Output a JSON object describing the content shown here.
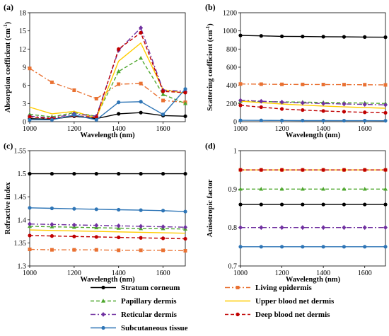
{
  "chart_data": [
    {
      "panel_label": "(a)",
      "type": "line",
      "xlabel": "Wavelength (nm)",
      "ylabel": "Absorption coefficient (cm",
      "ylabel_unit": "-1",
      "ylabel_close": ")",
      "xlim": [
        1000,
        1700
      ],
      "ylim": [
        0,
        18
      ],
      "xticks": [
        1000,
        1200,
        1400,
        1600
      ],
      "yticks": [
        0,
        3,
        6,
        9,
        12,
        15,
        18
      ],
      "ytick_decimals": 0,
      "series": [
        {
          "name": "Stratum corneum",
          "x": [
            1000,
            1100,
            1200,
            1300,
            1400,
            1500,
            1600,
            1700
          ],
          "y": [
            0.5,
            0.4,
            0.9,
            0.5,
            1.3,
            1.5,
            1.0,
            0.9
          ]
        },
        {
          "name": "Living epidermis",
          "x": [
            1000,
            1100,
            1200,
            1300,
            1400,
            1500,
            1600,
            1700
          ],
          "y": [
            8.8,
            6.5,
            5.2,
            3.8,
            6.2,
            6.3,
            3.5,
            3.2
          ]
        },
        {
          "name": "Papillary dermis",
          "x": [
            1000,
            1100,
            1200,
            1300,
            1400,
            1500,
            1600,
            1700
          ],
          "y": [
            1.2,
            0.8,
            1.5,
            0.9,
            8.3,
            10.5,
            4.5,
            3.0
          ]
        },
        {
          "name": "Upper blood net dermis",
          "x": [
            1000,
            1100,
            1200,
            1300,
            1400,
            1500,
            1600,
            1700
          ],
          "y": [
            2.4,
            1.3,
            1.7,
            0.6,
            10.0,
            13.0,
            5.3,
            4.7
          ]
        },
        {
          "name": "Reticular dermis",
          "x": [
            1000,
            1100,
            1200,
            1300,
            1400,
            1500,
            1600,
            1700
          ],
          "y": [
            0.9,
            0.6,
            1.3,
            0.9,
            11.8,
            15.5,
            5.2,
            5.0
          ]
        },
        {
          "name": "Deep blood net dermis",
          "x": [
            1000,
            1100,
            1200,
            1300,
            1400,
            1500,
            1600,
            1700
          ],
          "y": [
            0.8,
            0.5,
            1.0,
            0.7,
            12.0,
            14.7,
            5.0,
            4.8
          ]
        },
        {
          "name": "Subcutaneous tissue",
          "x": [
            1000,
            1100,
            1200,
            1300,
            1400,
            1500,
            1600,
            1700
          ],
          "y": [
            0.3,
            0.3,
            1.1,
            0.3,
            3.2,
            3.3,
            1.2,
            5.4
          ]
        }
      ]
    },
    {
      "panel_label": "(b)",
      "type": "line",
      "xlabel": "Wavelength (nm)",
      "ylabel": "Scattering coefficient (cm",
      "ylabel_unit": "-1",
      "ylabel_close": ")",
      "xlim": [
        1000,
        1700
      ],
      "ylim": [
        0,
        1200
      ],
      "xticks": [
        1000,
        1200,
        1400,
        1600
      ],
      "yticks": [
        0,
        200,
        400,
        600,
        800,
        1000,
        1200
      ],
      "ytick_decimals": 0,
      "series": [
        {
          "name": "Stratum corneum",
          "x": [
            1000,
            1100,
            1200,
            1300,
            1400,
            1500,
            1600,
            1700
          ],
          "y": [
            950,
            945,
            940,
            938,
            936,
            934,
            932,
            930
          ]
        },
        {
          "name": "Living epidermis",
          "x": [
            1000,
            1100,
            1200,
            1300,
            1400,
            1500,
            1600,
            1700
          ],
          "y": [
            415,
            413,
            411,
            410,
            409,
            408,
            407,
            405
          ]
        },
        {
          "name": "Papillary dermis",
          "x": [
            1000,
            1100,
            1200,
            1300,
            1400,
            1500,
            1600,
            1700
          ],
          "y": [
            225,
            222,
            218,
            215,
            212,
            208,
            205,
            200
          ]
        },
        {
          "name": "Upper blood net dermis",
          "x": [
            1000,
            1100,
            1200,
            1300,
            1400,
            1500,
            1600,
            1700
          ],
          "y": [
            225,
            210,
            195,
            182,
            172,
            163,
            155,
            148
          ]
        },
        {
          "name": "Reticular dermis",
          "x": [
            1000,
            1100,
            1200,
            1300,
            1400,
            1500,
            1600,
            1700
          ],
          "y": [
            235,
            225,
            215,
            207,
            200,
            195,
            190,
            185
          ]
        },
        {
          "name": "Deep blood net dermis",
          "x": [
            1000,
            1100,
            1200,
            1300,
            1400,
            1500,
            1600,
            1700
          ],
          "y": [
            180,
            160,
            140,
            128,
            118,
            110,
            103,
            98
          ]
        },
        {
          "name": "Subcutaneous tissue",
          "x": [
            1000,
            1100,
            1200,
            1300,
            1400,
            1500,
            1600,
            1700
          ],
          "y": [
            15,
            14,
            13,
            12,
            12,
            11,
            11,
            10
          ]
        }
      ]
    },
    {
      "panel_label": "(c)",
      "type": "line",
      "xlabel": "Wavelength (nm)",
      "ylabel": "Refractive index",
      "xlim": [
        1000,
        1700
      ],
      "ylim": [
        1.3,
        1.55
      ],
      "xticks": [
        1000,
        1200,
        1400,
        1600
      ],
      "yticks": [
        1.3,
        1.35,
        1.4,
        1.45,
        1.5,
        1.55
      ],
      "ytick_labels": [
        "1.3",
        "1.35",
        "1.4",
        "1.45",
        "1.5",
        "1.55"
      ],
      "series": [
        {
          "name": "Stratum corneum",
          "x": [
            1000,
            1100,
            1200,
            1300,
            1400,
            1500,
            1600,
            1700
          ],
          "y": [
            1.5,
            1.5,
            1.5,
            1.5,
            1.5,
            1.5,
            1.5,
            1.5
          ]
        },
        {
          "name": "Living epidermis",
          "x": [
            1000,
            1100,
            1200,
            1300,
            1400,
            1500,
            1600,
            1700
          ],
          "y": [
            1.336,
            1.335,
            1.335,
            1.335,
            1.334,
            1.334,
            1.334,
            1.333
          ]
        },
        {
          "name": "Papillary dermis",
          "x": [
            1000,
            1100,
            1200,
            1300,
            1400,
            1500,
            1600,
            1700
          ],
          "y": [
            1.386,
            1.385,
            1.384,
            1.383,
            1.382,
            1.381,
            1.381,
            1.38
          ]
        },
        {
          "name": "Upper blood net dermis",
          "x": [
            1000,
            1100,
            1200,
            1300,
            1400,
            1500,
            1600,
            1700
          ],
          "y": [
            1.378,
            1.377,
            1.376,
            1.375,
            1.374,
            1.373,
            1.372,
            1.371
          ]
        },
        {
          "name": "Reticular dermis",
          "x": [
            1000,
            1100,
            1200,
            1300,
            1400,
            1500,
            1600,
            1700
          ],
          "y": [
            1.391,
            1.39,
            1.389,
            1.388,
            1.387,
            1.386,
            1.385,
            1.384
          ]
        },
        {
          "name": "Deep blood net dermis",
          "x": [
            1000,
            1100,
            1200,
            1300,
            1400,
            1500,
            1600,
            1700
          ],
          "y": [
            1.366,
            1.365,
            1.364,
            1.363,
            1.362,
            1.361,
            1.36,
            1.359
          ]
        },
        {
          "name": "Subcutaneous tissue",
          "x": [
            1000,
            1100,
            1200,
            1300,
            1400,
            1500,
            1600,
            1700
          ],
          "y": [
            1.426,
            1.425,
            1.424,
            1.423,
            1.422,
            1.421,
            1.42,
            1.418
          ]
        }
      ]
    },
    {
      "panel_label": "(d)",
      "type": "line",
      "xlabel": "Wavelength (nm)",
      "ylabel": "Anisotropic factor",
      "xlim": [
        1000,
        1700
      ],
      "ylim": [
        0.7,
        1.0
      ],
      "xticks": [
        1000,
        1200,
        1400,
        1600
      ],
      "yticks": [
        0.7,
        0.8,
        0.9,
        1.0
      ],
      "ytick_labels": [
        "0.7",
        "0.8",
        "0.9",
        "1"
      ],
      "series": [
        {
          "name": "Stratum corneum",
          "x": [
            1000,
            1100,
            1200,
            1300,
            1400,
            1500,
            1600,
            1700
          ],
          "y": [
            0.86,
            0.86,
            0.86,
            0.86,
            0.86,
            0.86,
            0.86,
            0.86
          ]
        },
        {
          "name": "Living epidermis",
          "x": [
            1000,
            1100,
            1200,
            1300,
            1400,
            1500,
            1600,
            1700
          ],
          "y": [
            0.95,
            0.95,
            0.95,
            0.95,
            0.95,
            0.95,
            0.95,
            0.95
          ]
        },
        {
          "name": "Papillary dermis",
          "x": [
            1000,
            1100,
            1200,
            1300,
            1400,
            1500,
            1600,
            1700
          ],
          "y": [
            0.9,
            0.9,
            0.9,
            0.9,
            0.9,
            0.9,
            0.9,
            0.9
          ]
        },
        {
          "name": "Upper blood net dermis",
          "x": [
            1000,
            1100,
            1200,
            1300,
            1400,
            1500,
            1600,
            1700
          ],
          "y": [
            0.95,
            0.95,
            0.95,
            0.95,
            0.95,
            0.95,
            0.95,
            0.95
          ]
        },
        {
          "name": "Reticular dermis",
          "x": [
            1000,
            1100,
            1200,
            1300,
            1400,
            1500,
            1600,
            1700
          ],
          "y": [
            0.8,
            0.8,
            0.8,
            0.8,
            0.8,
            0.8,
            0.8,
            0.8
          ]
        },
        {
          "name": "Deep blood net dermis",
          "x": [
            1000,
            1100,
            1200,
            1300,
            1400,
            1500,
            1600,
            1700
          ],
          "y": [
            0.95,
            0.95,
            0.95,
            0.95,
            0.95,
            0.95,
            0.95,
            0.95
          ]
        },
        {
          "name": "Subcutaneous tissue",
          "x": [
            1000,
            1100,
            1200,
            1300,
            1400,
            1500,
            1600,
            1700
          ],
          "y": [
            0.75,
            0.75,
            0.75,
            0.75,
            0.75,
            0.75,
            0.75,
            0.75
          ]
        }
      ]
    }
  ],
  "legend": {
    "placement": "bottom",
    "items": [
      {
        "label": "Stratum corneum",
        "color": "#000000",
        "dash": "solid",
        "marker": "circle"
      },
      {
        "label": "Living epidermis",
        "color": "#E97132",
        "dash": "dashdot",
        "marker": "square"
      },
      {
        "label": "Papillary dermis",
        "color": "#4EA72E",
        "dash": "dash",
        "marker": "triangle"
      },
      {
        "label": "Upper blood net dermis",
        "color": "#FFCC00",
        "dash": "solid",
        "marker": "none"
      },
      {
        "label": "Reticular dermis",
        "color": "#7030A0",
        "dash": "dashdot",
        "marker": "diamond"
      },
      {
        "label": "Deep blood net dermis",
        "color": "#C00000",
        "dash": "dash",
        "marker": "circle"
      },
      {
        "label": "Subcutaneous tissue",
        "color": "#2E75B6",
        "dash": "solid",
        "marker": "circle"
      }
    ]
  }
}
